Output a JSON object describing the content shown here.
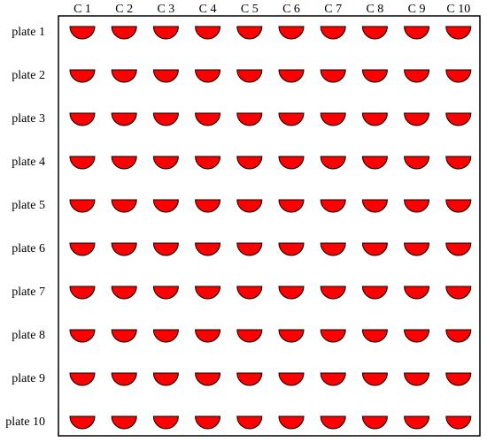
{
  "columns": [
    "C 1",
    "C 2",
    "C 3",
    "C 4",
    "C 5",
    "C 6",
    "C 7",
    "C 8",
    "C 9",
    "C 10"
  ],
  "rows": [
    "plate 1",
    "plate 2",
    "plate 3",
    "plate 4",
    "plate 5",
    "plate 6",
    "plate 7",
    "plate 8",
    "plate 9",
    "plate 10"
  ],
  "cell_shape": "half-circle",
  "colors": {
    "cell_fill": "#ff0000",
    "cell_stroke": "#000000",
    "frame_stroke": "#000000",
    "background": "#ffffff"
  }
}
